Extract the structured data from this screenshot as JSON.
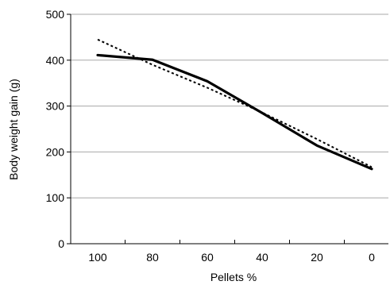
{
  "chart_data": {
    "type": "line",
    "title": "",
    "xlabel": "Pellets %",
    "ylabel": "Body weight gain (g)",
    "categories": [
      "100",
      "80",
      "60",
      "40",
      "20",
      "0"
    ],
    "x": [
      100,
      80,
      60,
      40,
      20,
      0
    ],
    "ylim": [
      0,
      500
    ],
    "yticks": [
      0,
      100,
      200,
      300,
      400,
      500
    ],
    "grid": "horizontal",
    "legend": "none",
    "series": [
      {
        "style": "solid",
        "color": "#000000",
        "values": [
          411,
          401,
          354,
          285,
          214,
          163
        ]
      },
      {
        "style": "dotted",
        "color": "#000000",
        "values": [
          445,
          390,
          340,
          286,
          228,
          167
        ]
      }
    ]
  }
}
